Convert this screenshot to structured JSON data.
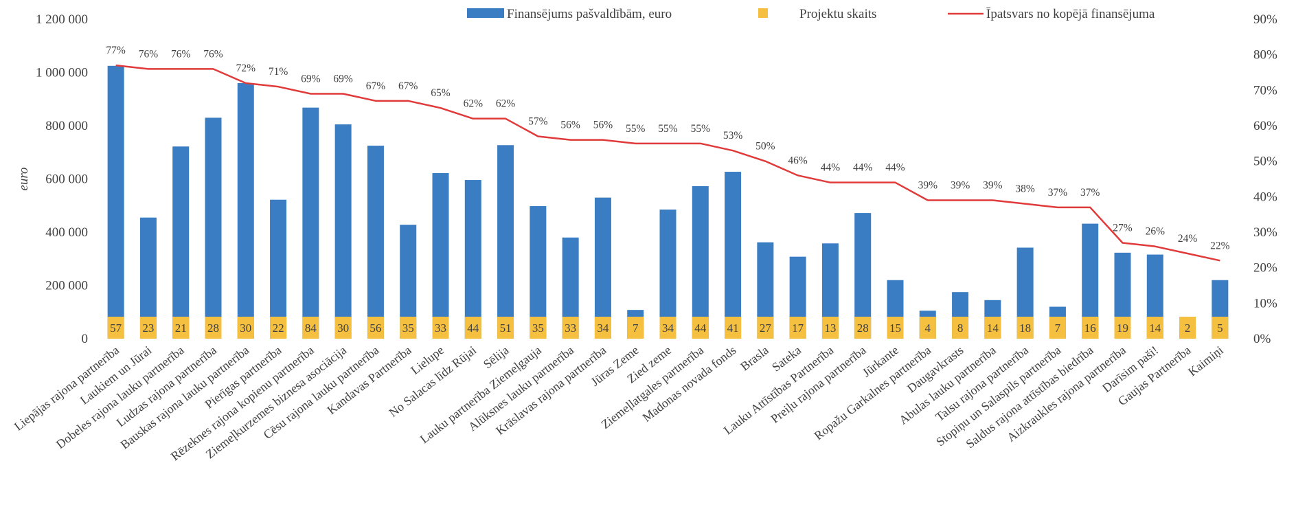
{
  "chart_data": {
    "type": "bar",
    "ylabel": "euro",
    "ylim": [
      0,
      1200000
    ],
    "y2lim": [
      0,
      90
    ],
    "y_ticks": [
      "0",
      "200 000",
      "400 000",
      "600 000",
      "800 000",
      "1 000 000",
      "1 200 000"
    ],
    "y2_ticks": [
      "0%",
      "10%",
      "20%",
      "30%",
      "40%",
      "50%",
      "60%",
      "70%",
      "80%",
      "90%"
    ],
    "legend_position": "top",
    "grid": false,
    "colors": {
      "bars": "#3a7dc3",
      "counts": "#f5c040",
      "line": "#e03a3a"
    },
    "categories": [
      "Liepājas rajona partnerība",
      "Laukiem un Jūrai",
      "Dobeles rajona lauku partnerība",
      "Ludzas rajona partnerība",
      "Bauskas rajona lauku partnerība",
      "Pierīgas partnerība",
      "Rēzeknes rajona kopienu partnerība",
      "Ziemeļkurzemes biznesa asociācija",
      "Cēsu rajona lauku partnerība",
      "Kandavas Partnerība",
      "Lielupe",
      "No Salacas līdz Rūjai",
      "Sēlija",
      "Lauku partnerība Ziemeļgauja",
      "Alūksnes lauku partnerība",
      "Krāslavas rajona partnerība",
      "Jūras Zeme",
      "Zied zeme",
      "Ziemeļlatgales partnerība",
      "Madonas novada fonds",
      "Brasla",
      "Sateka",
      "Lauku Attīstības Partnerība",
      "Preiļu rajona partnerība",
      "Jūrkante",
      "Ropažu Garkalnes partnerība",
      "Daugavkrasts",
      "Abulas lauku partnerība",
      "Talsu rajona partnerība",
      "Stopiņu un Salaspils partnerība",
      "Saldus rajona attīstības biedrība",
      "Aizkraukles rajona partnerība",
      "Darīsim paši!",
      "Gaujas Partnerība",
      "Kaimiņi"
    ],
    "series": [
      {
        "name": "Finansējums pašvaldībām, euro",
        "type": "bar",
        "values": [
          1025000,
          455000,
          722000,
          830000,
          960000,
          522000,
          868000,
          805000,
          725000,
          428000,
          622000,
          596000,
          727000,
          498000,
          380000,
          530000,
          108000,
          485000,
          573000,
          627000,
          362000,
          308000,
          358000,
          472000,
          220000,
          105000,
          175000,
          145000,
          342000,
          120000,
          432000,
          323000,
          316000,
          42000,
          220000
        ]
      },
      {
        "name": "Projektu skaits",
        "type": "label",
        "values": [
          57,
          23,
          21,
          28,
          30,
          22,
          84,
          30,
          56,
          35,
          33,
          44,
          51,
          35,
          33,
          34,
          7,
          34,
          44,
          41,
          27,
          17,
          13,
          28,
          15,
          4,
          8,
          14,
          18,
          7,
          16,
          19,
          14,
          2,
          5
        ]
      },
      {
        "name": "Īpatsvars no kopējā finansējuma",
        "type": "line",
        "axis": "right",
        "values": [
          77,
          76,
          76,
          76,
          72,
          71,
          69,
          69,
          67,
          67,
          65,
          62,
          62,
          57,
          56,
          56,
          55,
          55,
          55,
          53,
          50,
          46,
          44,
          44,
          44,
          39,
          39,
          39,
          38,
          37,
          37,
          27,
          26,
          24,
          22
        ]
      }
    ]
  }
}
